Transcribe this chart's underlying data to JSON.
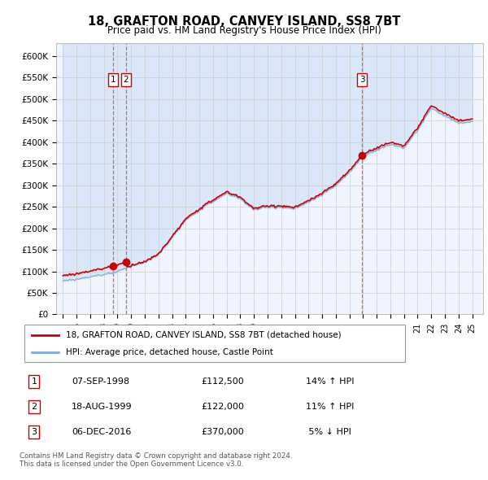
{
  "title": "18, GRAFTON ROAD, CANVEY ISLAND, SS8 7BT",
  "subtitle": "Price paid vs. HM Land Registry's House Price Index (HPI)",
  "ytick_vals": [
    0,
    50000,
    100000,
    150000,
    200000,
    250000,
    300000,
    350000,
    400000,
    450000,
    500000,
    550000,
    600000
  ],
  "ytick_labels": [
    "£0",
    "£50K",
    "£100K",
    "£150K",
    "£200K",
    "£250K",
    "£300K",
    "£350K",
    "£400K",
    "£450K",
    "£500K",
    "£550K",
    "£600K"
  ],
  "ylim": [
    0,
    630000
  ],
  "sale_dates": [
    1998.69,
    1999.63,
    2016.92
  ],
  "sale_prices": [
    112500,
    122000,
    370000
  ],
  "sale_labels": [
    "1",
    "2",
    "3"
  ],
  "legend_line1": "18, GRAFTON ROAD, CANVEY ISLAND, SS8 7BT (detached house)",
  "legend_line2": "HPI: Average price, detached house, Castle Point",
  "table_rows": [
    [
      "1",
      "07-SEP-1998",
      "£112,500",
      "14% ↑ HPI"
    ],
    [
      "2",
      "18-AUG-1999",
      "£122,000",
      "11% ↑ HPI"
    ],
    [
      "3",
      "06-DEC-2016",
      "£370,000",
      " 5% ↓ HPI"
    ]
  ],
  "footer1": "Contains HM Land Registry data © Crown copyright and database right 2024.",
  "footer2": "This data is licensed under the Open Government Licence v3.0.",
  "line_color_red": "#cc0000",
  "line_color_blue": "#7aaddc",
  "fill_color_blue": "#ddeeff",
  "background_color": "#ffffff",
  "plot_bg_color": "#f0f4ff",
  "grid_color": "#cccccc",
  "hpi_anchors_x": [
    1995,
    1996,
    1997,
    1998,
    1999,
    2000,
    2001,
    2002,
    2003,
    2004,
    2005,
    2006,
    2007,
    2008,
    2009,
    2010,
    2011,
    2012,
    2013,
    2014,
    2015,
    2016,
    2017,
    2018,
    2019,
    2020,
    2021,
    2022,
    2023,
    2024,
    2025
  ],
  "hpi_anchors_y": [
    78000,
    82000,
    87000,
    93000,
    100000,
    112000,
    120000,
    138000,
    178000,
    218000,
    242000,
    262000,
    280000,
    268000,
    242000,
    248000,
    248000,
    245000,
    260000,
    278000,
    300000,
    330000,
    368000,
    382000,
    396000,
    388000,
    428000,
    480000,
    462000,
    445000,
    450000
  ]
}
